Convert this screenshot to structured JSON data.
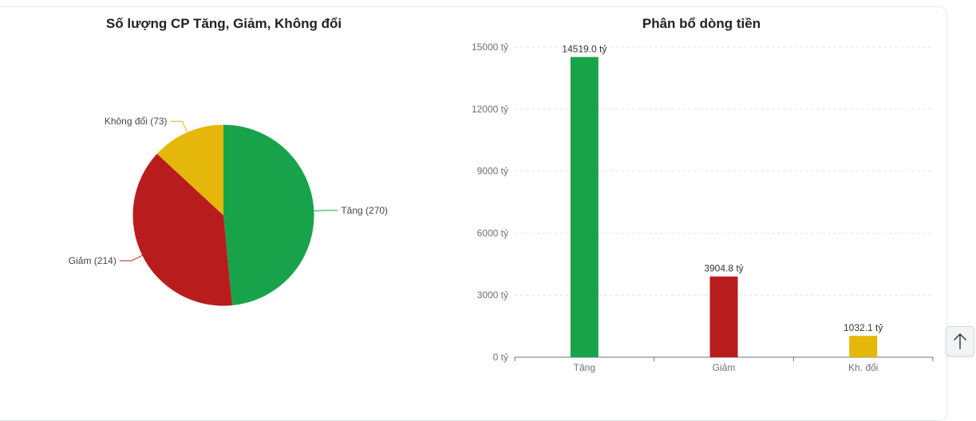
{
  "chart_data": [
    {
      "type": "pie",
      "title": "Số lượng CP Tăng, Giảm, Không đổi",
      "slices": [
        {
          "value": 270,
          "label": "Tăng (270)",
          "color": "#18a34a"
        },
        {
          "value": 214,
          "label": "Giảm (214)",
          "color": "#b91c1c"
        },
        {
          "value": 73,
          "label": "Không đổi (73)",
          "color": "#e5b70a"
        }
      ]
    },
    {
      "type": "bar",
      "title": "Phân bổ dòng tiền",
      "categories": [
        "Tăng",
        "Giảm",
        "Kh. đổi"
      ],
      "values": [
        14519.0,
        3904.8,
        1032.1
      ],
      "value_labels": [
        "14519.0 tỷ",
        "3904.8 tỷ",
        "1032.1 tỷ"
      ],
      "colors": [
        "#18a34a",
        "#b91c1c",
        "#e5b70a"
      ],
      "ylim": [
        0,
        15000
      ],
      "yticks": [
        0,
        3000,
        6000,
        9000,
        12000,
        15000
      ],
      "ytick_labels": [
        "0 tỷ",
        "3000 tỷ",
        "6000 tỷ",
        "9000 tỷ",
        "12000 tỷ",
        "15000 tỷ"
      ],
      "grid": true
    }
  ],
  "scroll_top_button": {
    "icon": "arrow-up-icon"
  }
}
